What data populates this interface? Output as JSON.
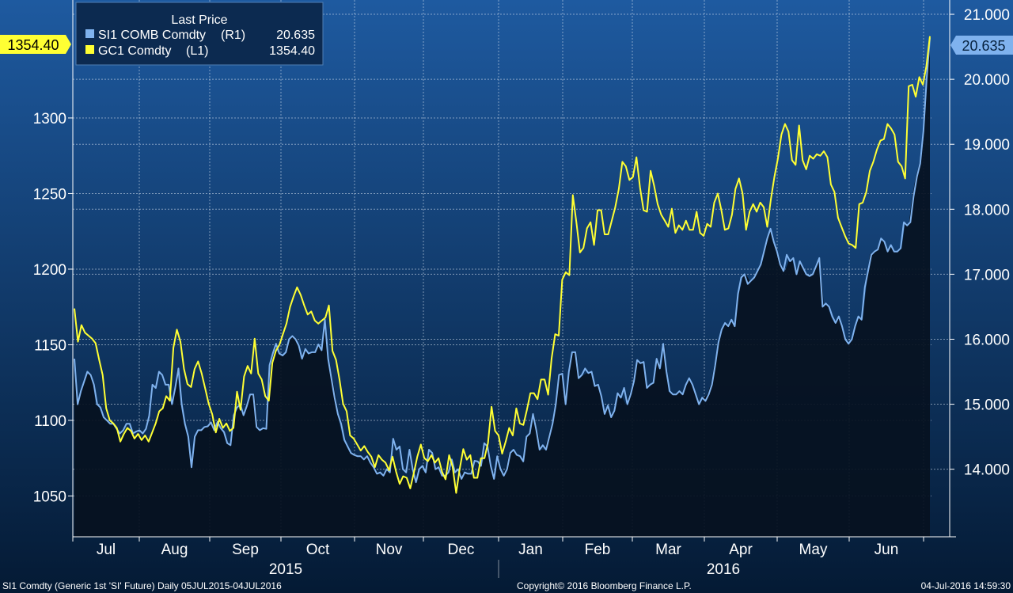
{
  "colors": {
    "bg_top": "#1e5aa0",
    "bg_bottom": "#041a34",
    "silver": "#7fb2ee",
    "gold": "#ffff33",
    "grid": "#d8e4f0",
    "legend_bg": "#0c2a50",
    "fill": "#06111f"
  },
  "legend": {
    "title": "Last Price",
    "items": [
      {
        "name": "SI1 COMB Comdty",
        "axis": "(R1)",
        "value": "20.635"
      },
      {
        "name": "GC1 Comdty",
        "axis": "(L1)",
        "value": "1354.40"
      }
    ]
  },
  "footer": {
    "left": "SI1 Comdty (Generic 1st 'SI' Future)  Daily 05JUL2015-04JUL2016",
    "center": "Copyright© 2016 Bloomberg Finance L.P.",
    "right": "04-Jul-2016 14:59:30"
  },
  "chart_data": {
    "type": "line",
    "x_axis": {
      "months": [
        "Jul",
        "Aug",
        "Sep",
        "Oct",
        "Nov",
        "Dec",
        "Jan",
        "Feb",
        "Mar",
        "Apr",
        "May",
        "Jun"
      ],
      "years": [
        "2015",
        "2016"
      ]
    },
    "left_axis": {
      "ticks": [
        "1050",
        "1100",
        "1150",
        "1200",
        "1250",
        "1300"
      ],
      "ylim": [
        1023,
        1378
      ]
    },
    "right_axis": {
      "ticks": [
        "14.000",
        "15.000",
        "16.000",
        "17.000",
        "18.000",
        "19.000",
        "20.000",
        "21.000"
      ],
      "ylim": [
        12.96,
        21.22
      ]
    },
    "last_value_flags": {
      "left": "1354.40",
      "right": "20.635"
    },
    "grid": true,
    "series": [
      {
        "name": "GC1 Comdty",
        "axis": "left",
        "values": [
          1174,
          1152,
          1163,
          1158,
          1156,
          1154,
          1151,
          1140,
          1130,
          1108,
          1100,
          1098,
          1095,
          1086,
          1091,
          1095,
          1093,
          1088,
          1091,
          1087,
          1090,
          1086,
          1092,
          1098,
          1106,
          1108,
          1116,
          1113,
          1148,
          1160,
          1152,
          1134,
          1124,
          1122,
          1134,
          1139,
          1131,
          1121,
          1111,
          1104,
          1092,
          1101,
          1095,
          1098,
          1093,
          1095,
          1119,
          1107,
          1129,
          1136,
          1131,
          1154,
          1131,
          1127,
          1116,
          1113,
          1138,
          1146,
          1150,
          1157,
          1164,
          1175,
          1182,
          1188,
          1183,
          1176,
          1170,
          1172,
          1166,
          1164,
          1166,
          1168,
          1176,
          1146,
          1140,
          1127,
          1111,
          1106,
          1090,
          1088,
          1084,
          1080,
          1083,
          1079,
          1076,
          1069,
          1077,
          1074,
          1072,
          1067,
          1076,
          1066,
          1058,
          1063,
          1062,
          1055,
          1065,
          1076,
          1084,
          1075,
          1073,
          1077,
          1072,
          1075,
          1066,
          1061,
          1077,
          1069,
          1052,
          1068,
          1081,
          1074,
          1077,
          1062,
          1062,
          1075,
          1075,
          1085,
          1109,
          1093,
          1090,
          1078,
          1086,
          1095,
          1090,
          1108,
          1098,
          1097,
          1107,
          1118,
          1118,
          1114,
          1127,
          1127,
          1117,
          1141,
          1157,
          1156,
          1193,
          1198,
          1196,
          1249,
          1231,
          1211,
          1214,
          1227,
          1231,
          1216,
          1239,
          1239,
          1223,
          1223,
          1232,
          1241,
          1253,
          1271,
          1268,
          1259,
          1261,
          1274,
          1254,
          1239,
          1238,
          1265,
          1255,
          1243,
          1236,
          1232,
          1228,
          1240,
          1224,
          1229,
          1226,
          1232,
          1226,
          1226,
          1238,
          1224,
          1222,
          1230,
          1228,
          1244,
          1250,
          1239,
          1226,
          1227,
          1236,
          1253,
          1260,
          1250,
          1226,
          1238,
          1243,
          1238,
          1244,
          1241,
          1228,
          1246,
          1261,
          1273,
          1289,
          1296,
          1291,
          1272,
          1269,
          1295,
          1272,
          1266,
          1275,
          1273,
          1276,
          1275,
          1278,
          1274,
          1256,
          1251,
          1234,
          1228,
          1222,
          1217,
          1216,
          1214,
          1243,
          1244,
          1251,
          1265,
          1271,
          1279,
          1285,
          1286,
          1296,
          1293,
          1289,
          1271,
          1268,
          1260,
          1321,
          1322,
          1314,
          1327,
          1322,
          1334,
          1354
        ]
      },
      {
        "name": "SI1 COMB Comdty",
        "axis": "right",
        "values": [
          15.7,
          15.0,
          15.2,
          15.35,
          15.5,
          15.45,
          15.3,
          15.0,
          14.95,
          14.8,
          14.75,
          14.7,
          14.7,
          14.62,
          14.55,
          14.6,
          14.7,
          14.7,
          14.55,
          14.58,
          14.6,
          14.55,
          14.62,
          14.82,
          15.3,
          15.25,
          15.5,
          15.45,
          15.3,
          15.3,
          15.0,
          15.25,
          15.55,
          15.0,
          14.7,
          14.5,
          14.03,
          14.5,
          14.6,
          14.6,
          14.65,
          14.66,
          14.72,
          14.6,
          14.73,
          14.63,
          14.57,
          14.4,
          14.37,
          14.83,
          14.95,
          15.0,
          14.83,
          14.97,
          15.15,
          15.15,
          14.65,
          14.6,
          14.63,
          14.62,
          15.6,
          15.78,
          15.93,
          15.78,
          15.75,
          15.8,
          16.0,
          16.05,
          16.0,
          15.9,
          15.7,
          15.85,
          15.78,
          15.8,
          15.8,
          15.92,
          15.83,
          16.3,
          15.7,
          15.4,
          15.1,
          14.85,
          14.7,
          14.45,
          14.35,
          14.25,
          14.22,
          14.2,
          14.2,
          14.15,
          14.2,
          14.1,
          14.03,
          13.93,
          13.95,
          13.9,
          14.0,
          13.95,
          14.47,
          14.3,
          14.35,
          14.0,
          13.95,
          14.3,
          14.0,
          13.8,
          14.0,
          14.05,
          13.95,
          14.3,
          14.25,
          14.0,
          14.03,
          13.9,
          13.9,
          13.95,
          14.15,
          13.95,
          14.0,
          13.85,
          13.95,
          13.93,
          13.93,
          14.13,
          14.12,
          14.05,
          14.4,
          14.35,
          14.05,
          13.85,
          14.2,
          14.0,
          13.9,
          14.0,
          14.25,
          14.3,
          14.22,
          14.2,
          14.12,
          14.5,
          14.55,
          14.85,
          14.6,
          14.3,
          14.37,
          14.3,
          14.5,
          14.7,
          15.0,
          15.45,
          15.47,
          15.0,
          15.5,
          15.8,
          15.8,
          15.4,
          15.45,
          15.55,
          15.48,
          15.5,
          15.28,
          15.3,
          15.12,
          14.85,
          14.98,
          14.8,
          14.9,
          15.17,
          15.1,
          15.25,
          15.0,
          15.15,
          15.35,
          15.68,
          15.63,
          15.65,
          15.25,
          15.3,
          15.33,
          15.7,
          15.55,
          15.93,
          15.5,
          15.2,
          15.15,
          15.15,
          15.2,
          15.15,
          15.3,
          15.4,
          15.3,
          15.15,
          15.0,
          15.1,
          15.05,
          15.15,
          15.3,
          15.6,
          15.95,
          16.15,
          16.25,
          16.2,
          16.3,
          16.2,
          16.7,
          16.95,
          17.0,
          16.85,
          16.9,
          16.95,
          17.05,
          17.15,
          17.35,
          17.55,
          17.7,
          17.5,
          17.35,
          17.15,
          17.05,
          17.3,
          17.2,
          17.25,
          17.0,
          17.2,
          17.1,
          17.0,
          16.97,
          17.0,
          17.12,
          17.25,
          16.5,
          16.55,
          16.5,
          16.35,
          16.25,
          16.35,
          16.2,
          16.0,
          15.93,
          16.0,
          16.2,
          16.35,
          16.3,
          16.8,
          17.05,
          17.3,
          17.35,
          17.38,
          17.55,
          17.5,
          17.35,
          17.45,
          17.35,
          17.35,
          17.4,
          17.8,
          17.75,
          17.8,
          18.2,
          18.5,
          18.7,
          19.2,
          20.0,
          20.635
        ]
      }
    ]
  }
}
